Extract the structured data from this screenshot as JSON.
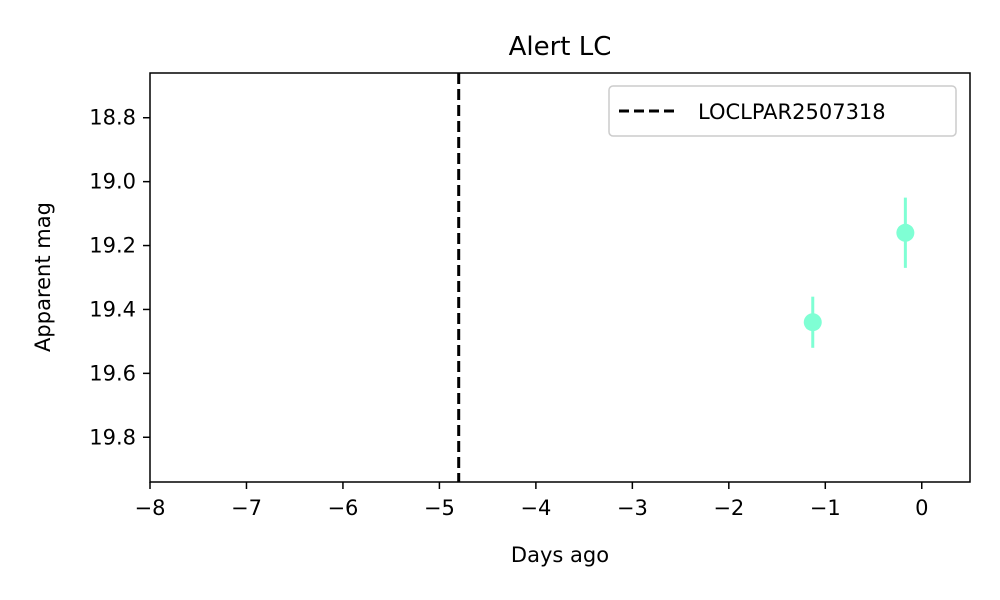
{
  "chart_data": {
    "type": "scatter",
    "title": "Alert LC",
    "xlabel": "Days ago",
    "ylabel": "Apparent mag",
    "xlim": [
      -8,
      0.5
    ],
    "ylim": [
      19.94,
      18.66
    ],
    "y_inverted": true,
    "xticks": [
      -8,
      -7,
      -6,
      -5,
      -4,
      -3,
      -2,
      -1,
      0
    ],
    "xtick_labels": [
      "−8",
      "−7",
      "−6",
      "−5",
      "−4",
      "−3",
      "−2",
      "−1",
      "0"
    ],
    "yticks": [
      18.8,
      19.0,
      19.2,
      19.4,
      19.6,
      19.8
    ],
    "ytick_labels": [
      "18.8",
      "19.0",
      "19.2",
      "19.4",
      "19.6",
      "19.8"
    ],
    "grid": false,
    "legend_position": "top-right",
    "series": [
      {
        "color": "#7fffd4",
        "points": [
          {
            "x": -1.13,
            "y": 19.44,
            "yerr": 0.08
          },
          {
            "x": -0.17,
            "y": 19.16,
            "yerr": 0.11
          }
        ]
      }
    ],
    "vline": {
      "x": -4.8,
      "label": "LOCLPAR2507318",
      "style": "dashed",
      "color": "#000000"
    }
  }
}
